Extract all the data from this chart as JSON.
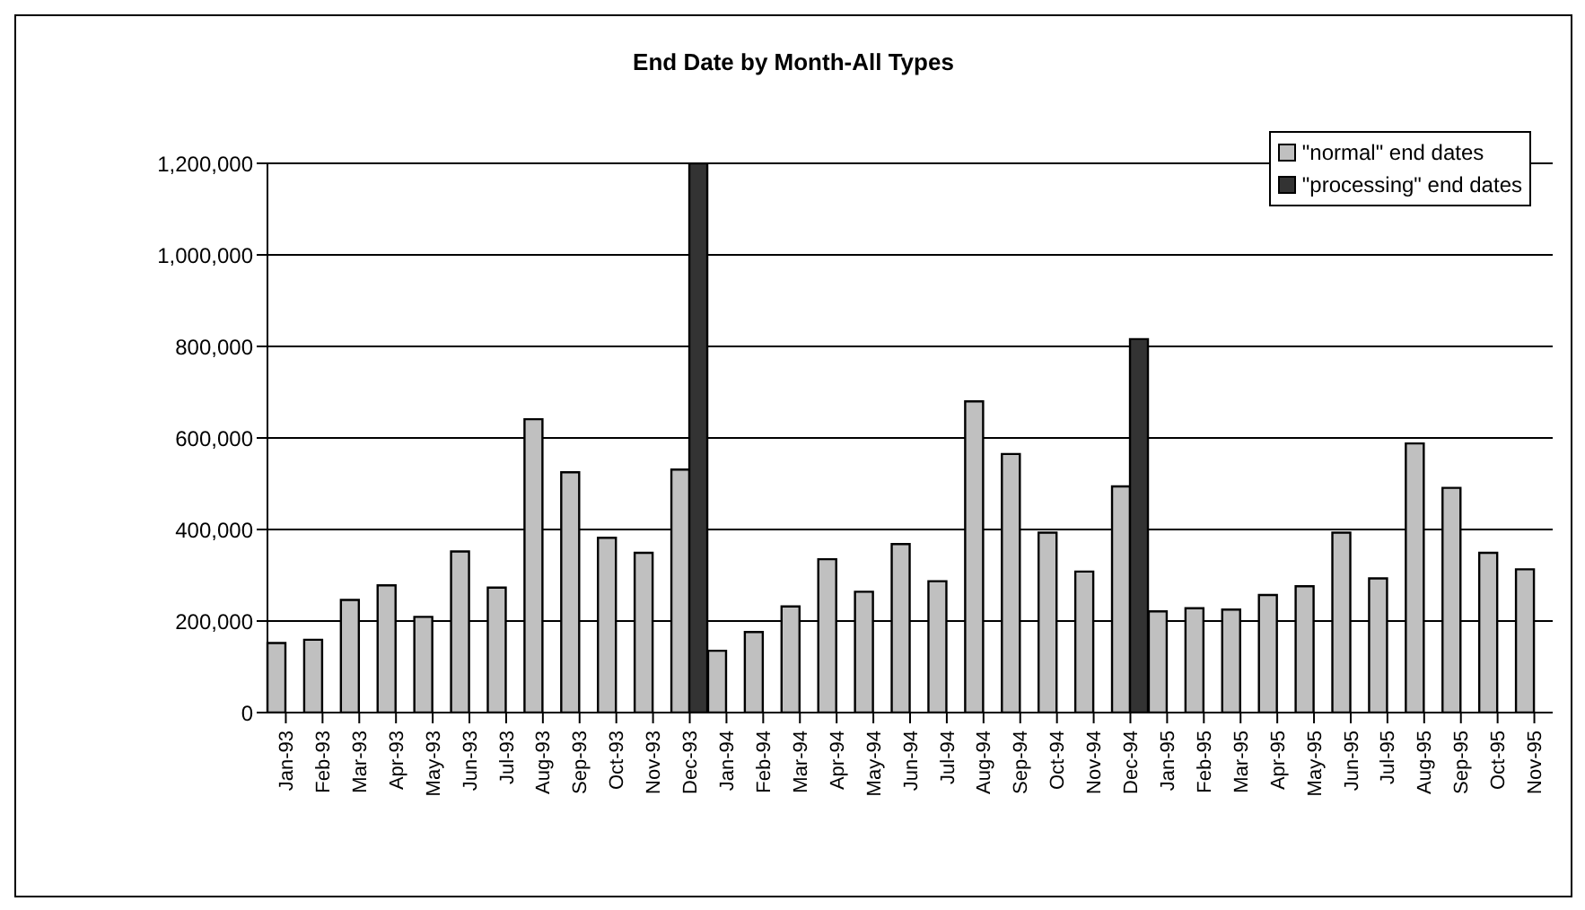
{
  "chart_data": {
    "type": "bar",
    "title": "End Date by Month-All Types",
    "categories": [
      "Jan-93",
      "Feb-93",
      "Mar-93",
      "Apr-93",
      "May-93",
      "Jun-93",
      "Jul-93",
      "Aug-93",
      "Sep-93",
      "Oct-93",
      "Nov-93",
      "Dec-93",
      "Jan-94",
      "Feb-94",
      "Mar-94",
      "Apr-94",
      "May-94",
      "Jun-94",
      "Jul-94",
      "Aug-94",
      "Sep-94",
      "Oct-94",
      "Nov-94",
      "Dec-94",
      "Jan-95",
      "Feb-95",
      "Mar-95",
      "Apr-95",
      "May-95",
      "Jun-95",
      "Jul-95",
      "Aug-95",
      "Sep-95",
      "Oct-95",
      "Nov-95"
    ],
    "series": [
      {
        "name": "\"normal\" end dates",
        "color": "#c0c0c0",
        "values": [
          152000,
          159000,
          246000,
          278000,
          209000,
          352000,
          273000,
          641000,
          525000,
          382000,
          349000,
          531000,
          135000,
          176000,
          232000,
          335000,
          264000,
          368000,
          287000,
          680000,
          565000,
          393000,
          308000,
          494000,
          221000,
          228000,
          225000,
          257000,
          276000,
          393000,
          293000,
          588000,
          491000,
          349000,
          313000
        ]
      },
      {
        "name": "\"processing\" end dates",
        "color": "#333333",
        "values": [
          null,
          null,
          null,
          null,
          null,
          null,
          null,
          null,
          null,
          null,
          null,
          1200000,
          null,
          null,
          null,
          null,
          null,
          null,
          null,
          null,
          null,
          null,
          null,
          816000,
          null,
          null,
          null,
          null,
          null,
          null,
          null,
          null,
          null,
          null,
          null
        ]
      }
    ],
    "ylim": [
      0,
      1200000
    ],
    "yticks": [
      {
        "value": 0,
        "label": "0"
      },
      {
        "value": 200000,
        "label": "200,000"
      },
      {
        "value": 400000,
        "label": "400,000"
      },
      {
        "value": 600000,
        "label": "600,000"
      },
      {
        "value": 800000,
        "label": "800,000"
      },
      {
        "value": 1000000,
        "label": "1,000,000"
      },
      {
        "value": 1200000,
        "label": "1,200,000"
      }
    ],
    "grid": "y",
    "legend": "top right"
  }
}
